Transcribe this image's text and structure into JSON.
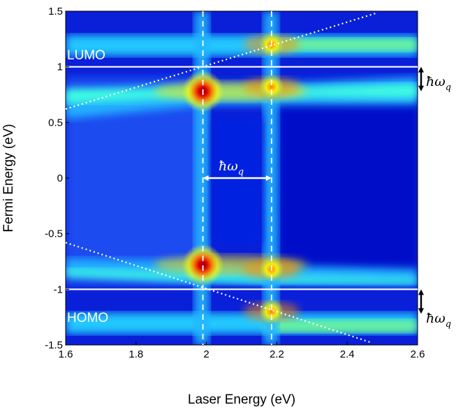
{
  "chart_data": {
    "type": "heatmap",
    "title": "",
    "xlabel": "Laser Energy (eV)",
    "ylabel": "Fermi Energy (eV)",
    "xlim": [
      1.6,
      2.6
    ],
    "ylim": [
      -1.5,
      1.5
    ],
    "x_ticks": [
      "1.6",
      "1.8",
      "2",
      "2.2",
      "2.4",
      "2.6"
    ],
    "y_ticks": [
      "1.5",
      "1",
      "0.5",
      "0",
      "-0.5",
      "-1",
      "-1.5"
    ],
    "colormap": [
      "#00008f",
      "#0000ff",
      "#0080ff",
      "#00ffff",
      "#80ff80",
      "#ffff00",
      "#ff8000",
      "#ff0000",
      "#800000"
    ],
    "levels": {
      "LUMO": 1.0,
      "HOMO": -1.0
    },
    "resonance_lines": [
      1.99,
      2.185
    ],
    "resonance_points": [
      {
        "x": 1.99,
        "y": 0.78
      },
      {
        "x": 1.99,
        "y": -0.78
      },
      {
        "x": 2.185,
        "y": 0.82
      },
      {
        "x": 2.185,
        "y": -0.82
      },
      {
        "x": 2.185,
        "y": 1.2
      },
      {
        "x": 2.185,
        "y": -1.2
      }
    ],
    "annotations": {
      "lumo_label": "LUMO",
      "homo_label": "HOMO",
      "phonon_energy": "ħω",
      "phonon_subscript": "q"
    },
    "phonon_arrow": {
      "x_start": 1.99,
      "x_end": 2.185,
      "y": 0.0
    }
  }
}
